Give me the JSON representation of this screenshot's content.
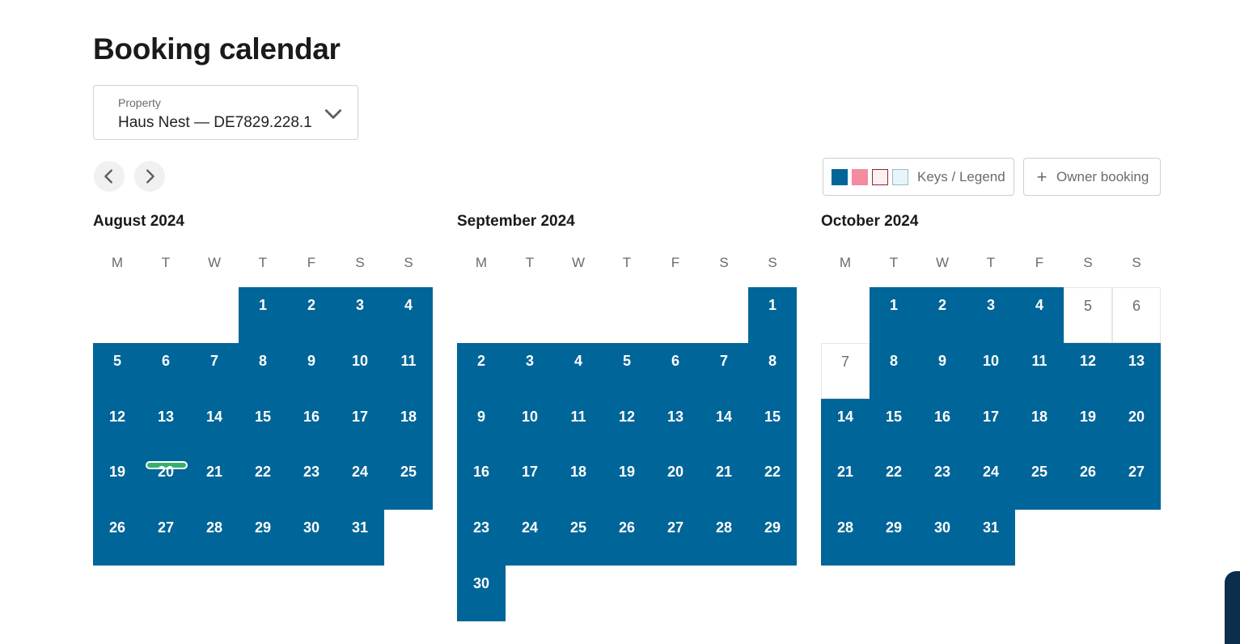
{
  "page": {
    "title": "Booking calendar"
  },
  "property": {
    "label": "Property",
    "value": "Haus Nest — DE7829.228.1"
  },
  "toolbar": {
    "legend_label": "Keys / Legend",
    "legend_colors": [
      "#006598",
      "#f48ba0",
      "#fdf0f2",
      "#e8f4fb"
    ],
    "owner_booking_label": "Owner booking"
  },
  "weekdays": [
    "M",
    "T",
    "W",
    "T",
    "F",
    "S",
    "S"
  ],
  "months": [
    {
      "name": "August 2024",
      "first_weekday": 3,
      "days": 31,
      "free_days": [],
      "today": 20
    },
    {
      "name": "September 2024",
      "first_weekday": 6,
      "days": 30,
      "free_days": [],
      "today": null
    },
    {
      "name": "October 2024",
      "first_weekday": 1,
      "days": 31,
      "free_days": [
        5,
        6,
        7
      ],
      "today": null
    }
  ],
  "colors": {
    "booked": "#006598",
    "today_marker": "#37b06d"
  }
}
